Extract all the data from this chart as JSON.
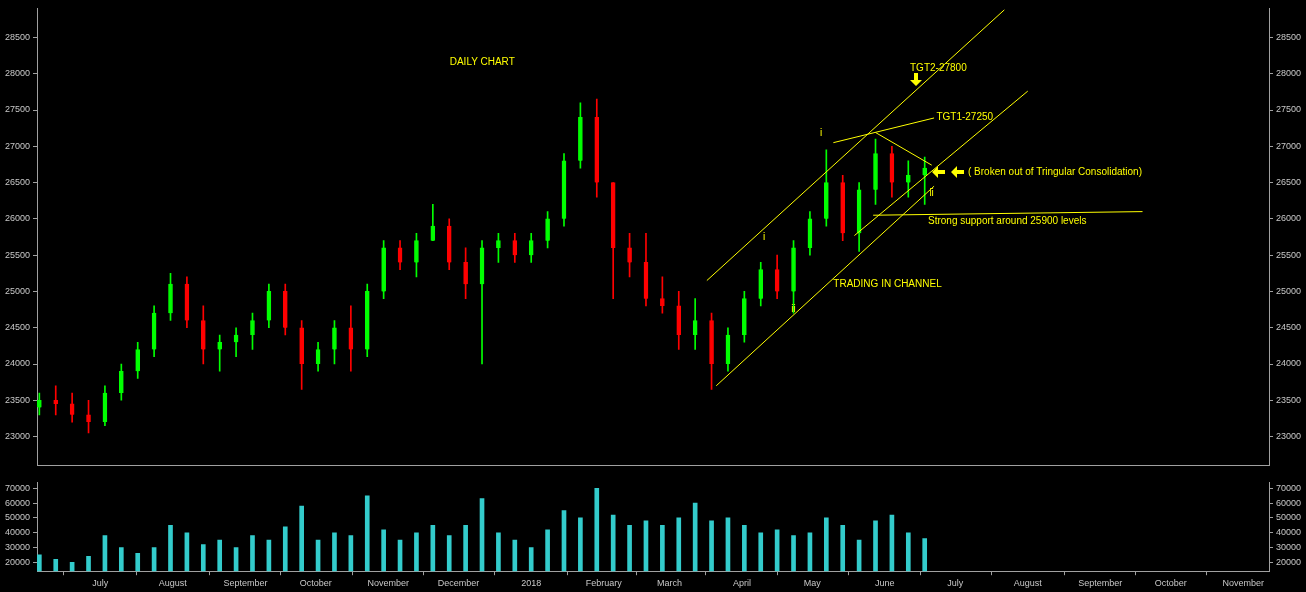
{
  "chart_data": [
    {
      "type": "candlestick",
      "title": "DAILY CHART",
      "x": [
        "2017-06-05",
        "2017-06-12",
        "2017-06-19",
        "2017-06-26",
        "2017-07-03",
        "2017-07-10",
        "2017-07-17",
        "2017-07-24",
        "2017-07-31",
        "2017-08-07",
        "2017-08-14",
        "2017-08-21",
        "2017-08-28",
        "2017-09-04",
        "2017-09-11",
        "2017-09-18",
        "2017-09-25",
        "2017-10-02",
        "2017-10-09",
        "2017-10-16",
        "2017-10-23",
        "2017-10-30",
        "2017-11-06",
        "2017-11-13",
        "2017-11-20",
        "2017-11-27",
        "2017-12-04",
        "2017-12-11",
        "2017-12-18",
        "2017-12-25",
        "2018-01-01",
        "2018-01-08",
        "2018-01-15",
        "2018-01-22",
        "2018-01-29",
        "2018-02-05",
        "2018-02-12",
        "2018-02-19",
        "2018-02-26",
        "2018-03-05",
        "2018-03-12",
        "2018-03-19",
        "2018-03-26",
        "2018-04-02",
        "2018-04-09",
        "2018-04-16",
        "2018-04-23",
        "2018-04-30",
        "2018-05-07",
        "2018-05-14",
        "2018-05-21",
        "2018-05-28",
        "2018-06-04",
        "2018-06-11",
        "2018-06-18"
      ],
      "ohlc": [
        [
          23400,
          23600,
          23300,
          23500
        ],
        [
          23500,
          23700,
          23300,
          23450
        ],
        [
          23450,
          23600,
          23200,
          23300
        ],
        [
          23300,
          23500,
          23050,
          23200
        ],
        [
          23200,
          23700,
          23150,
          23600
        ],
        [
          23600,
          24000,
          23500,
          23900
        ],
        [
          23900,
          24300,
          23800,
          24200
        ],
        [
          24200,
          24800,
          24100,
          24700
        ],
        [
          24700,
          25250,
          24600,
          25100
        ],
        [
          25100,
          25200,
          24500,
          24600
        ],
        [
          24600,
          24800,
          24000,
          24200
        ],
        [
          24200,
          24400,
          23900,
          24300
        ],
        [
          24300,
          24500,
          24100,
          24400
        ],
        [
          24400,
          24700,
          24200,
          24600
        ],
        [
          24600,
          25100,
          24500,
          25000
        ],
        [
          25000,
          25100,
          24400,
          24500
        ],
        [
          24500,
          24600,
          23650,
          24000
        ],
        [
          24000,
          24300,
          23900,
          24200
        ],
        [
          24200,
          24600,
          24000,
          24500
        ],
        [
          24500,
          24800,
          23900,
          24200
        ],
        [
          24200,
          25100,
          24100,
          25000
        ],
        [
          25000,
          25700,
          24900,
          25600
        ],
        [
          25600,
          25700,
          25300,
          25400
        ],
        [
          25400,
          25800,
          25200,
          25700
        ],
        [
          25700,
          26200,
          25700,
          25900
        ],
        [
          25900,
          26000,
          25300,
          25400
        ],
        [
          25400,
          25600,
          24900,
          25100
        ],
        [
          25100,
          25700,
          24000,
          25600
        ],
        [
          25600,
          25800,
          25400,
          25700
        ],
        [
          25700,
          25800,
          25400,
          25500
        ],
        [
          25500,
          25800,
          25400,
          25700
        ],
        [
          25700,
          26100,
          25600,
          26000
        ],
        [
          26000,
          26900,
          25900,
          26800
        ],
        [
          26800,
          27600,
          26700,
          27400
        ],
        [
          27400,
          27650,
          26300,
          26500
        ],
        [
          26500,
          26500,
          24900,
          25600
        ],
        [
          25600,
          25800,
          25200,
          25400
        ],
        [
          25400,
          25800,
          24800,
          24900
        ],
        [
          24900,
          25200,
          24700,
          24800
        ],
        [
          24800,
          25000,
          24200,
          24400
        ],
        [
          24400,
          24900,
          24200,
          24600
        ],
        [
          24600,
          24700,
          23650,
          24000
        ],
        [
          24000,
          24500,
          23900,
          24400
        ],
        [
          24400,
          25000,
          24300,
          24900
        ],
        [
          24900,
          25400,
          24800,
          25300
        ],
        [
          25300,
          25500,
          24900,
          25000
        ],
        [
          25000,
          25700,
          24700,
          25600
        ],
        [
          25600,
          26100,
          25500,
          26000
        ],
        [
          26000,
          26950,
          25900,
          26500
        ],
        [
          26500,
          26600,
          25700,
          25800
        ],
        [
          25800,
          26500,
          25550,
          26400
        ],
        [
          26400,
          27100,
          26200,
          26900
        ],
        [
          26900,
          27000,
          26300,
          26500
        ],
        [
          26500,
          26800,
          26300,
          26600
        ],
        [
          26600,
          26850,
          26200,
          26700
        ]
      ],
      "colors": [
        "#00ff00",
        "#ff0000",
        "#ff0000",
        "#ff0000",
        "#00ff00",
        "#00ff00",
        "#00ff00",
        "#00ff00",
        "#00ff00",
        "#ff0000",
        "#ff0000",
        "#00ff00",
        "#00ff00",
        "#00ff00",
        "#00ff00",
        "#ff0000",
        "#ff0000",
        "#00ff00",
        "#00ff00",
        "#ff0000",
        "#00ff00",
        "#00ff00",
        "#ff0000",
        "#00ff00",
        "#00ff00",
        "#ff0000",
        "#ff0000",
        "#00ff00",
        "#00ff00",
        "#ff0000",
        "#00ff00",
        "#00ff00",
        "#00ff00",
        "#00ff00",
        "#ff0000",
        "#ff0000",
        "#ff0000",
        "#ff0000",
        "#ff0000",
        "#ff0000",
        "#00ff00",
        "#ff0000",
        "#00ff00",
        "#00ff00",
        "#00ff00",
        "#ff0000",
        "#00ff00",
        "#00ff00",
        "#00ff00",
        "#ff0000",
        "#00ff00",
        "#00ff00",
        "#ff0000",
        "#00ff00",
        "#00ff00"
      ],
      "series": [
        {
          "type": "line",
          "color": "#ffff00",
          "x": [
            "2018-03-17",
            "2018-07-22"
          ],
          "values": [
            25150,
            28880
          ]
        },
        {
          "type": "line",
          "color": "#ffff00",
          "x": [
            "2018-05-19",
            "2018-08-01"
          ],
          "values": [
            25770,
            27760
          ]
        },
        {
          "type": "line",
          "color": "#ffff00",
          "x": [
            "2018-03-21",
            "2018-06-22"
          ],
          "values": [
            23700,
            26450
          ]
        },
        {
          "type": "line",
          "color": "#ffff00",
          "x": [
            "2018-05-10",
            "2018-06-22"
          ],
          "values": [
            27050,
            27390
          ]
        },
        {
          "type": "line",
          "color": "#ffff00",
          "x": [
            "2018-05-28",
            "2018-06-21"
          ],
          "values": [
            27190,
            26740
          ]
        },
        {
          "type": "line",
          "color": "#ffff00",
          "x": [
            "2018-05-27",
            "2018-09-19"
          ],
          "values": [
            26050,
            26100
          ]
        }
      ],
      "annotations": [
        "TGT2-27800",
        {
          "text": "TGT1-27250",
          "x": "2018-06-23",
          "y": 27400
        },
        "( Broken out of Tringular Consolidation)",
        "Strong support around 25900 levels",
        {
          "text": "TRADING IN CHANNEL",
          "x": "2018-05-10",
          "y": 25100
        },
        "i",
        "i",
        {
          "text": "ii",
          "x": "2018-04-22",
          "y": 24750
        },
        {
          "text": "ii",
          "x": "2018-06-20",
          "y": 26350
        }
      ],
      "xlim": [
        "2017-06-04",
        "2018-11-12"
      ],
      "ylim": [
        22600,
        28900
      ],
      "yticks": [
        23000,
        23500,
        24000,
        24500,
        25000,
        25500,
        26000,
        26500,
        27000,
        27500,
        28000,
        28500
      ],
      "y2lim": [
        22600,
        28900
      ],
      "y2ticks": [
        23000,
        23500,
        24000,
        24500,
        25000,
        25500,
        26000,
        26500,
        27000,
        27500,
        28000,
        28500
      ],
      "tick_labels": "y",
      "grid": false,
      "legend": false
    },
    {
      "type": "bar",
      "color": "#33cccc",
      "x": [
        "2017-06-05",
        "2017-06-12",
        "2017-06-19",
        "2017-06-26",
        "2017-07-03",
        "2017-07-10",
        "2017-07-17",
        "2017-07-24",
        "2017-07-31",
        "2017-08-07",
        "2017-08-14",
        "2017-08-21",
        "2017-08-28",
        "2017-09-04",
        "2017-09-11",
        "2017-09-18",
        "2017-09-25",
        "2017-10-02",
        "2017-10-09",
        "2017-10-16",
        "2017-10-23",
        "2017-10-30",
        "2017-11-06",
        "2017-11-13",
        "2017-11-20",
        "2017-11-27",
        "2017-12-04",
        "2017-12-11",
        "2017-12-18",
        "2017-12-25",
        "2018-01-01",
        "2018-01-08",
        "2018-01-15",
        "2018-01-22",
        "2018-01-29",
        "2018-02-05",
        "2018-02-12",
        "2018-02-19",
        "2018-02-26",
        "2018-03-05",
        "2018-03-12",
        "2018-03-19",
        "2018-03-26",
        "2018-04-02",
        "2018-04-09",
        "2018-04-16",
        "2018-04-23",
        "2018-04-30",
        "2018-05-07",
        "2018-05-14",
        "2018-05-21",
        "2018-05-28",
        "2018-06-04",
        "2018-06-11",
        "2018-06-18"
      ],
      "values": [
        25000,
        22000,
        20000,
        24000,
        38000,
        30000,
        26000,
        30000,
        45000,
        40000,
        32000,
        35000,
        30000,
        38000,
        35000,
        44000,
        58000,
        35000,
        40000,
        38000,
        65000,
        42000,
        35000,
        40000,
        45000,
        38000,
        45000,
        63000,
        40000,
        35000,
        30000,
        42000,
        55000,
        50000,
        70000,
        52000,
        45000,
        48000,
        45000,
        50000,
        60000,
        48000,
        50000,
        45000,
        40000,
        42000,
        38000,
        40000,
        50000,
        45000,
        35000,
        48000,
        52000,
        40000,
        36000
      ],
      "xlim": [
        "2017-06-04",
        "2018-11-12"
      ],
      "xticks": [
        {
          "value": "2017-07-01",
          "label": "July"
        },
        {
          "value": "2017-08-01",
          "label": "August"
        },
        {
          "value": "2017-09-01",
          "label": "September"
        },
        {
          "value": "2017-10-01",
          "label": "October"
        },
        {
          "value": "2017-11-01",
          "label": "November"
        },
        {
          "value": "2017-12-01",
          "label": "December"
        },
        {
          "value": "2018-01-01",
          "label": "2018"
        },
        {
          "value": "2018-02-01",
          "label": "February"
        },
        {
          "value": "2018-03-01",
          "label": "March"
        },
        {
          "value": "2018-04-01",
          "label": "April"
        },
        {
          "value": "2018-05-01",
          "label": "May"
        },
        {
          "value": "2018-06-01",
          "label": "June"
        },
        {
          "value": "2018-07-01",
          "label": "July"
        },
        {
          "value": "2018-08-01",
          "label": "August"
        },
        {
          "value": "2018-09-01",
          "label": "September"
        },
        {
          "value": "2018-10-01",
          "label": "October"
        },
        {
          "value": "2018-11-01",
          "label": "November"
        }
      ],
      "ylim": [
        14000,
        74000
      ],
      "yticks": [
        20000,
        30000,
        40000,
        50000,
        60000,
        70000
      ],
      "y2lim": [
        14000,
        74000
      ],
      "y2ticks": [
        20000,
        30000,
        40000,
        50000,
        60000,
        70000
      ],
      "grid": false,
      "legend": false
    }
  ]
}
